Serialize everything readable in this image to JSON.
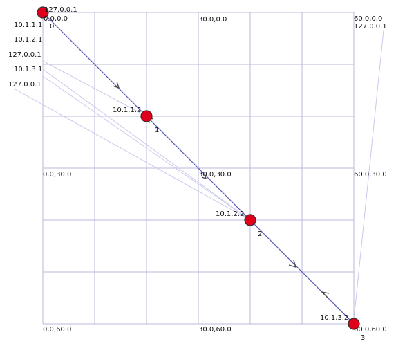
{
  "grid_labels": [
    "0.0,0.0",
    "30.0,0.0",
    "60.0,0.0",
    "0.0,30.0",
    "30.0,30.0",
    "60.0,30.0",
    "0.0,60.0",
    "30.0,60.0",
    "60.0,60.0"
  ],
  "nodes": [
    {
      "id": "0",
      "address": "127.0.0.1"
    },
    {
      "id": "1",
      "address": "10.1.1.2"
    },
    {
      "id": "2",
      "address": "10.1.2.2"
    },
    {
      "id": "3",
      "address": "10.1.3.2"
    }
  ],
  "side_labels": [
    "10.1.1.1",
    "10.1.2.1",
    "127.0.0.1",
    "10.1.3.1",
    "127.0.0.1",
    "127.0.0.1"
  ]
}
